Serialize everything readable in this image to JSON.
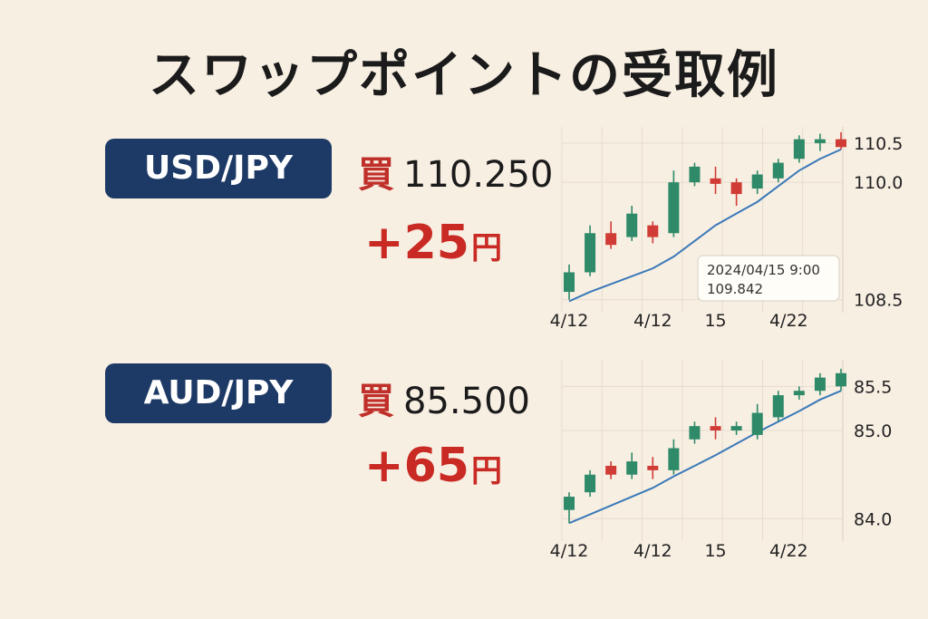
{
  "title": "スワップポイントの受取例",
  "colors": {
    "up": "#2e8a68",
    "down": "#d03b35",
    "ma": "#3a79b8",
    "badge": "#1d3a66",
    "swap": "#c92a24"
  },
  "pairs": [
    {
      "pair": "USD/JPY",
      "buy_label": "買",
      "price": "110.250",
      "swap_amount": "+25",
      "swap_unit": "円"
    },
    {
      "pair": "AUD/JPY",
      "buy_label": "買",
      "price": "85.500",
      "swap_amount": "+65",
      "swap_unit": "円"
    }
  ],
  "chart_data": [
    {
      "type": "candlestick",
      "pair": "USD/JPY",
      "ylim": [
        108.45,
        110.65
      ],
      "y_ticks": [
        108.5,
        110.0,
        110.5
      ],
      "y_tick_labels": [
        "108.5",
        "110.0",
        "110.5"
      ],
      "x_tick_labels": [
        "4/12",
        "4/12",
        "15",
        "4/22"
      ],
      "x_tick_index": [
        0,
        4,
        7,
        10.5
      ],
      "grid": true,
      "candles": [
        {
          "o": 108.6,
          "h": 108.95,
          "l": 108.5,
          "c": 108.85
        },
        {
          "o": 108.85,
          "h": 109.45,
          "l": 108.8,
          "c": 109.35
        },
        {
          "o": 109.35,
          "h": 109.5,
          "l": 109.15,
          "c": 109.2
        },
        {
          "o": 109.3,
          "h": 109.7,
          "l": 109.25,
          "c": 109.6
        },
        {
          "o": 109.45,
          "h": 109.5,
          "l": 109.22,
          "c": 109.3
        },
        {
          "o": 109.35,
          "h": 110.15,
          "l": 109.3,
          "c": 110.0
        },
        {
          "o": 110.0,
          "h": 110.25,
          "l": 109.95,
          "c": 110.2
        },
        {
          "o": 110.05,
          "h": 110.2,
          "l": 109.85,
          "c": 109.98
        },
        {
          "o": 110.0,
          "h": 110.05,
          "l": 109.7,
          "c": 109.85
        },
        {
          "o": 109.92,
          "h": 110.15,
          "l": 109.85,
          "c": 110.1
        },
        {
          "o": 110.05,
          "h": 110.3,
          "l": 110.0,
          "c": 110.25
        },
        {
          "o": 110.3,
          "h": 110.6,
          "l": 110.25,
          "c": 110.55
        },
        {
          "o": 110.5,
          "h": 110.62,
          "l": 110.4,
          "c": 110.55
        },
        {
          "o": 110.55,
          "h": 110.64,
          "l": 110.42,
          "c": 110.45
        }
      ],
      "ma": [
        108.48,
        108.6,
        108.7,
        108.8,
        108.9,
        109.05,
        109.25,
        109.45,
        109.6,
        109.75,
        109.95,
        110.15,
        110.3,
        110.42
      ],
      "tooltip": {
        "date": "2024/04/15 9:00",
        "value": "109.842"
      }
    },
    {
      "type": "candlestick",
      "pair": "AUD/JPY",
      "ylim": [
        83.85,
        85.75
      ],
      "y_ticks": [
        84.0,
        85.0,
        85.5
      ],
      "y_tick_labels": [
        "84.0",
        "85.0",
        "85.5"
      ],
      "x_tick_labels": [
        "4/12",
        "4/12",
        "15",
        "4/22"
      ],
      "x_tick_index": [
        0,
        4,
        7,
        10.5
      ],
      "grid": true,
      "candles": [
        {
          "o": 84.1,
          "h": 84.3,
          "l": 83.95,
          "c": 84.25
        },
        {
          "o": 84.3,
          "h": 84.55,
          "l": 84.25,
          "c": 84.5
        },
        {
          "o": 84.6,
          "h": 84.65,
          "l": 84.45,
          "c": 84.5
        },
        {
          "o": 84.5,
          "h": 84.75,
          "l": 84.45,
          "c": 84.65
        },
        {
          "o": 84.6,
          "h": 84.7,
          "l": 84.45,
          "c": 84.55
        },
        {
          "o": 84.55,
          "h": 84.9,
          "l": 84.5,
          "c": 84.8
        },
        {
          "o": 84.9,
          "h": 85.1,
          "l": 84.85,
          "c": 85.05
        },
        {
          "o": 85.05,
          "h": 85.15,
          "l": 84.9,
          "c": 85.0
        },
        {
          "o": 85.0,
          "h": 85.1,
          "l": 84.95,
          "c": 85.05
        },
        {
          "o": 84.95,
          "h": 85.3,
          "l": 84.9,
          "c": 85.2
        },
        {
          "o": 85.15,
          "h": 85.45,
          "l": 85.1,
          "c": 85.4
        },
        {
          "o": 85.4,
          "h": 85.5,
          "l": 85.35,
          "c": 85.45
        },
        {
          "o": 85.45,
          "h": 85.65,
          "l": 85.4,
          "c": 85.6
        },
        {
          "o": 85.5,
          "h": 85.7,
          "l": 85.45,
          "c": 85.65
        }
      ],
      "ma": [
        83.95,
        84.05,
        84.15,
        84.25,
        84.35,
        84.48,
        84.6,
        84.72,
        84.85,
        84.98,
        85.1,
        85.22,
        85.35,
        85.45
      ]
    }
  ]
}
